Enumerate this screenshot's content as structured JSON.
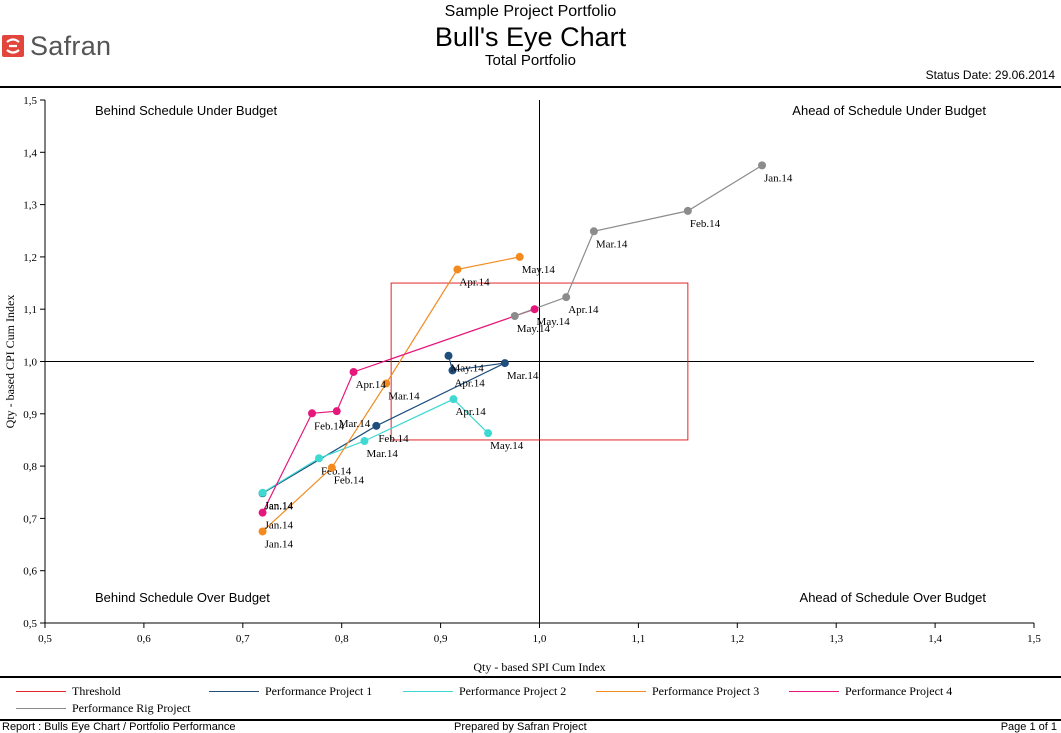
{
  "header": {
    "logo_text": "Safran",
    "title": "Sample Project Portfolio",
    "subtitle": "Bull's Eye Chart",
    "subsubtitle": "Total Portfolio",
    "status_date": "Status Date: 29.06.2014"
  },
  "colors": {
    "logo": "#e2453c",
    "threshold": "#e0262b"
  },
  "chart_data": {
    "type": "scatter",
    "xlabel": "Qty - based SPI Cum Index",
    "ylabel": "Qty - based CPI  Cum Index",
    "xlim": [
      0.5,
      1.5
    ],
    "ylim": [
      0.5,
      1.5
    ],
    "xticks": [
      "0,5",
      "0,6",
      "0,7",
      "0,8",
      "0,9",
      "1,0",
      "1,1",
      "1,2",
      "1,3",
      "1,4",
      "1,5"
    ],
    "yticks": [
      "0,5",
      "0,6",
      "0,7",
      "0,8",
      "0,9",
      "1,0",
      "1,1",
      "1,2",
      "1,3",
      "1,4",
      "1,5"
    ],
    "reference_lines": {
      "x": 1.0,
      "y": 1.0
    },
    "threshold": {
      "name": "Threshold",
      "x": [
        0.85,
        1.15
      ],
      "y": [
        0.85,
        1.15
      ],
      "color": "#e0262b"
    },
    "quadrants": {
      "top_left": "Behind Schedule Under Budget",
      "top_right": "Ahead of Schedule Under Budget",
      "bottom_left": "Behind Schedule Over Budget",
      "bottom_right": "Ahead of Schedule Over Budget"
    },
    "series": [
      {
        "name": "Performance Project 1",
        "color": "#1f4e7d",
        "points": [
          {
            "label": "Jan.14",
            "x": 0.72,
            "y": 0.748
          },
          {
            "label": "Feb.14",
            "x": 0.835,
            "y": 0.877
          },
          {
            "label": "Mar.14",
            "x": 0.965,
            "y": 0.997
          },
          {
            "label": "Apr.14",
            "x": 0.912,
            "y": 0.983
          },
          {
            "label": "May.14",
            "x": 0.908,
            "y": 1.011
          }
        ]
      },
      {
        "name": "Performance Project 2",
        "color": "#3fd9d2",
        "points": [
          {
            "label": "Jan.14",
            "x": 0.72,
            "y": 0.749
          },
          {
            "label": "Feb.14",
            "x": 0.777,
            "y": 0.815
          },
          {
            "label": "Mar.14",
            "x": 0.823,
            "y": 0.848
          },
          {
            "label": "Apr.14",
            "x": 0.913,
            "y": 0.928
          },
          {
            "label": "May.14",
            "x": 0.948,
            "y": 0.863
          }
        ]
      },
      {
        "name": "Performance Project 3",
        "color": "#f28a1e",
        "points": [
          {
            "label": "Jan.14",
            "x": 0.72,
            "y": 0.675
          },
          {
            "label": "Feb.14",
            "x": 0.79,
            "y": 0.797
          },
          {
            "label": "Mar.14",
            "x": 0.845,
            "y": 0.958
          },
          {
            "label": "Apr.14",
            "x": 0.917,
            "y": 1.176
          },
          {
            "label": "May.14",
            "x": 0.98,
            "y": 1.2
          }
        ]
      },
      {
        "name": "Performance Project 4",
        "color": "#e6177c",
        "points": [
          {
            "label": "Jan.14",
            "x": 0.72,
            "y": 0.711
          },
          {
            "label": "Feb.14",
            "x": 0.77,
            "y": 0.901
          },
          {
            "label": "Mar.14",
            "x": 0.795,
            "y": 0.905
          },
          {
            "label": "Apr.14",
            "x": 0.812,
            "y": 0.98
          },
          {
            "label": "May.14",
            "x": 0.995,
            "y": 1.1
          }
        ]
      },
      {
        "name": "Performance Rig Project",
        "color": "#8c8c8c",
        "points": [
          {
            "label": "Jan.14",
            "x": 1.225,
            "y": 1.375
          },
          {
            "label": "Feb.14",
            "x": 1.15,
            "y": 1.288
          },
          {
            "label": "Mar.14",
            "x": 1.055,
            "y": 1.249
          },
          {
            "label": "Apr.14",
            "x": 1.027,
            "y": 1.123
          },
          {
            "label": "May.14",
            "x": 0.975,
            "y": 1.087
          }
        ]
      }
    ]
  },
  "footer": {
    "report": "Report : Bulls Eye Chart / Portfolio Performance",
    "prepared": "Prepared by Safran Project",
    "page": "Page 1 of 1"
  }
}
